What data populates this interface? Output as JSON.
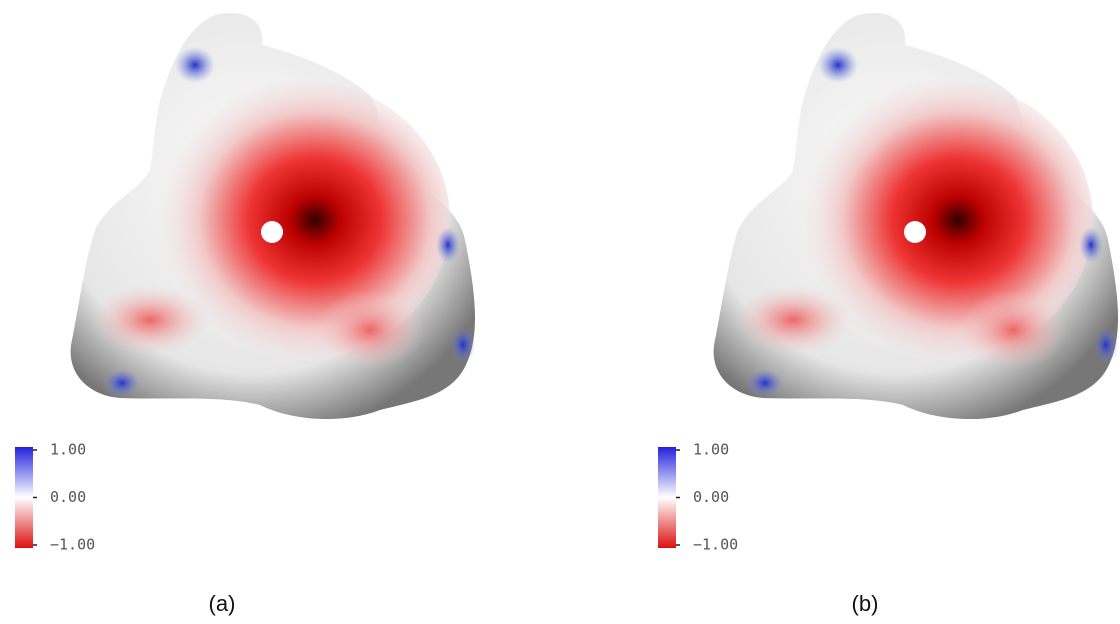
{
  "panels": [
    {
      "caption": "(a)",
      "colorbar": {
        "ticks": [
          {
            "value": 1,
            "label": "1.00"
          },
          {
            "value": 0,
            "label": "0.00"
          },
          {
            "value": -1,
            "label": "−1.00"
          }
        ]
      }
    },
    {
      "caption": "(b)",
      "colorbar": {
        "ticks": [
          {
            "value": 1,
            "label": "1.00"
          },
          {
            "value": 0,
            "label": "0.00"
          },
          {
            "value": -1,
            "label": "−1.00"
          }
        ]
      }
    }
  ]
}
